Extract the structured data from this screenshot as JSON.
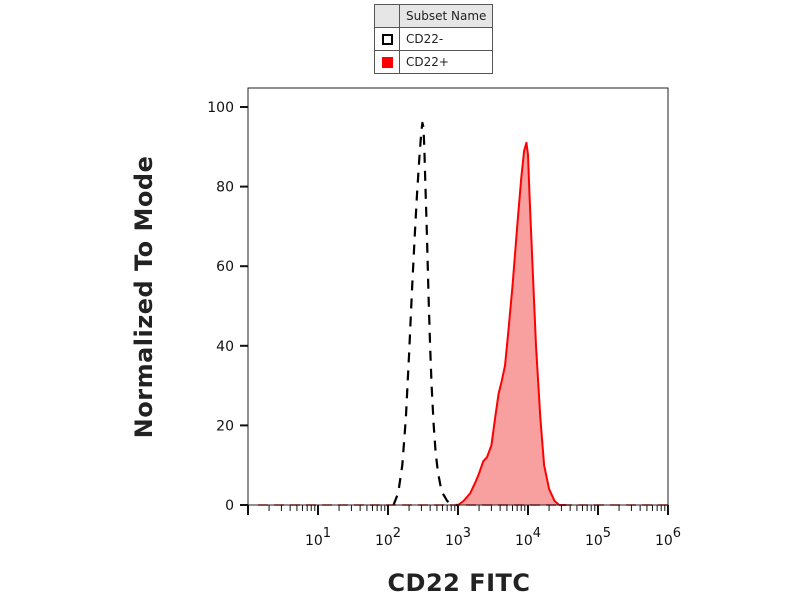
{
  "chart_data": {
    "type": "histogram-overlay",
    "xlabel": "CD22 FITC",
    "ylabel": "Normalized To Mode",
    "xscale": "log",
    "xlim": [
      1,
      1000000
    ],
    "ylim": [
      0,
      100
    ],
    "yticks": [
      0,
      20,
      40,
      60,
      80,
      100
    ],
    "xticks": [
      {
        "value": 10,
        "base": "10",
        "exp": "1"
      },
      {
        "value": 100,
        "base": "10",
        "exp": "2"
      },
      {
        "value": 1000,
        "base": "10",
        "exp": "3"
      },
      {
        "value": 10000,
        "base": "10",
        "exp": "4"
      },
      {
        "value": 100000,
        "base": "10",
        "exp": "5"
      },
      {
        "value": 1000000,
        "base": "10",
        "exp": "6"
      }
    ],
    "legend": {
      "header": "Subset Name",
      "placement": "top-center"
    },
    "series": [
      {
        "name": "CD22-",
        "style": "dashed-outline",
        "color": "#000000",
        "x": [
          120,
          140,
          160,
          180,
          200,
          220,
          240,
          260,
          280,
          300,
          310,
          320,
          330,
          340,
          360,
          380,
          400,
          420,
          450,
          480,
          520,
          560,
          600,
          650,
          700,
          760,
          820,
          900,
          1000
        ],
        "y": [
          0,
          3,
          10,
          22,
          38,
          54,
          67,
          78,
          87,
          94,
          96,
          95,
          90,
          82,
          68,
          52,
          40,
          30,
          20,
          13,
          8,
          5,
          3,
          2,
          1,
          0.5,
          0.2,
          0,
          0
        ]
      },
      {
        "name": "CD22+",
        "style": "filled",
        "color": "#ff0000",
        "fill": "#f8a0a0",
        "x": [
          1000,
          1200,
          1500,
          1800,
          2000,
          2300,
          2600,
          3000,
          3400,
          3800,
          4200,
          4700,
          5200,
          6000,
          7000,
          8000,
          8800,
          9500,
          10000,
          10500,
          11500,
          13000,
          15000,
          17000,
          20000,
          24000,
          28000,
          35000
        ],
        "y": [
          0,
          1,
          3,
          6,
          8,
          11,
          12,
          15,
          22,
          28,
          31,
          35,
          43,
          55,
          70,
          82,
          89,
          91,
          88,
          78,
          62,
          40,
          22,
          10,
          4,
          1,
          0,
          0
        ]
      }
    ]
  }
}
